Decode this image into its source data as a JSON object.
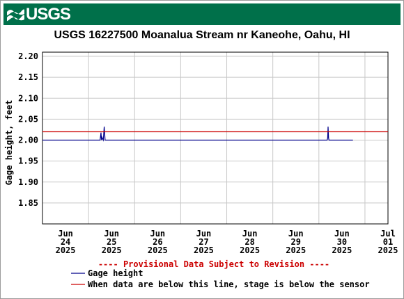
{
  "header": {
    "logo_text": "USGS",
    "logo_icon": "usgs-wave-icon"
  },
  "chart_data": {
    "type": "line",
    "title": "USGS 16227500 Moanalua Stream nr Kaneohe, Oahu, HI",
    "ylabel": "Gage height, feet",
    "xlabel": "",
    "ylim": [
      1.8,
      2.21
    ],
    "xlim": [
      0,
      7.5
    ],
    "grid": true,
    "y_ticks": [
      "2.20",
      "2.15",
      "2.10",
      "2.05",
      "2.00",
      "1.95",
      "1.90",
      "1.85"
    ],
    "y_tick_values": [
      2.2,
      2.15,
      2.1,
      2.05,
      2.0,
      1.95,
      1.9,
      1.85
    ],
    "x_ticks": [
      {
        "month": "Jun",
        "day": "24",
        "year": "2025"
      },
      {
        "month": "Jun",
        "day": "25",
        "year": "2025"
      },
      {
        "month": "Jun",
        "day": "26",
        "year": "2025"
      },
      {
        "month": "Jun",
        "day": "27",
        "year": "2025"
      },
      {
        "month": "Jun",
        "day": "28",
        "year": "2025"
      },
      {
        "month": "Jun",
        "day": "29",
        "year": "2025"
      },
      {
        "month": "Jun",
        "day": "30",
        "year": "2025"
      },
      {
        "month": "Jul",
        "day": "01",
        "year": "2025"
      }
    ],
    "series": [
      {
        "name": "Gage height",
        "color": "#00008b",
        "x": [
          0.0,
          1.25,
          1.27,
          1.28,
          1.29,
          1.32,
          1.34,
          1.36,
          1.38,
          1.4,
          6.18,
          6.19,
          6.2,
          6.21,
          6.22,
          6.24,
          6.74
        ],
        "y": [
          2.0,
          2.0,
          2.018,
          2.0,
          2.007,
          2.0,
          2.032,
          2.0,
          2.0,
          2.0,
          2.0,
          2.005,
          2.032,
          2.005,
          2.0,
          2.0,
          2.0
        ]
      },
      {
        "name": "When data are below this line, stage is below the sensor",
        "color": "#cc0000",
        "x": [
          0.0,
          8.0
        ],
        "y": [
          2.02,
          2.02
        ]
      }
    ],
    "provisional_note": "---- Provisional Data Subject to Revision ----",
    "legend_position": "bottom"
  }
}
